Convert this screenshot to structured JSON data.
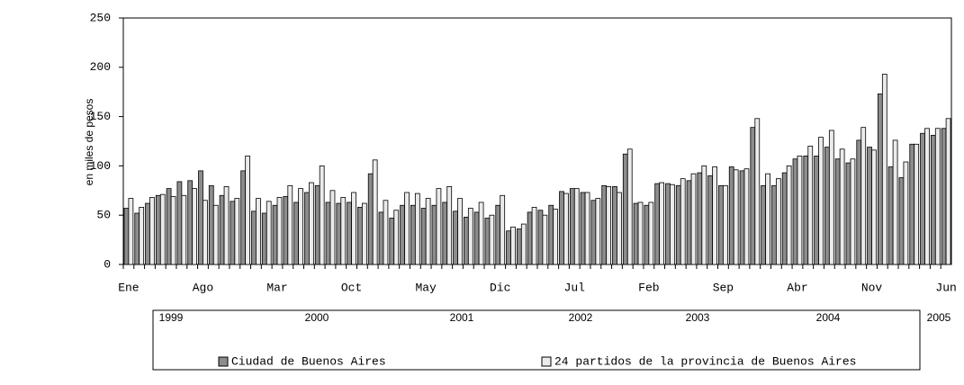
{
  "chart_data": {
    "type": "bar",
    "y_label": "en miles de pesos",
    "categories": [
      "Ene",
      null,
      null,
      null,
      null,
      null,
      null,
      "Ago",
      null,
      null,
      null,
      null,
      null,
      null,
      "Mar",
      null,
      null,
      null,
      null,
      null,
      null,
      "Oct",
      null,
      null,
      null,
      null,
      null,
      null,
      "May",
      null,
      null,
      null,
      null,
      null,
      null,
      "Dic",
      null,
      null,
      null,
      null,
      null,
      null,
      "Jul",
      null,
      null,
      null,
      null,
      null,
      null,
      "Feb",
      null,
      null,
      null,
      null,
      null,
      null,
      "Sep",
      null,
      null,
      null,
      null,
      null,
      null,
      "Abr",
      null,
      null,
      null,
      null,
      null,
      null,
      "Nov",
      null,
      null,
      null,
      null,
      null,
      null,
      "Jun"
    ],
    "years": [
      "1999",
      "2000",
      "2001",
      "2002",
      "2003",
      "2004",
      "2005"
    ],
    "series": [
      {
        "name": "Ciudad de Buenos Aires",
        "color": "#8c8c8c",
        "values": [
          57,
          52,
          62,
          70,
          77,
          84,
          85,
          95,
          80,
          70,
          64,
          95,
          54,
          52,
          60,
          69,
          63,
          73,
          80,
          63,
          62,
          63,
          58,
          92,
          53,
          47,
          60,
          60,
          57,
          60,
          63,
          54,
          48,
          53,
          47,
          60,
          34,
          36,
          53,
          55,
          60,
          74,
          77,
          73,
          65,
          80,
          79,
          112,
          62,
          60,
          82,
          82,
          80,
          85,
          93,
          90,
          80,
          99,
          95,
          139,
          80,
          80,
          93,
          107,
          110,
          110,
          119,
          107,
          103,
          126,
          119,
          173,
          99,
          88,
          122,
          133,
          131,
          138
        ]
      },
      {
        "name": "24 partidos de la provincia de Buenos Aires",
        "color": "#ebebeb",
        "values": [
          67,
          58,
          68,
          71,
          69,
          70,
          77,
          65,
          60,
          79,
          67,
          110,
          67,
          64,
          68,
          80,
          77,
          83,
          100,
          75,
          68,
          73,
          62,
          106,
          65,
          55,
          73,
          72,
          67,
          77,
          79,
          67,
          57,
          63,
          50,
          70,
          38,
          41,
          58,
          50,
          56,
          72,
          77,
          73,
          67,
          79,
          73,
          117,
          63,
          63,
          83,
          81,
          87,
          92,
          100,
          99,
          80,
          96,
          97,
          148,
          92,
          87,
          100,
          110,
          120,
          129,
          136,
          117,
          107,
          139,
          116,
          193,
          126,
          104,
          122,
          138,
          138,
          148
        ]
      }
    ],
    "ylim": [
      0,
      250
    ],
    "yticks": [
      0,
      50,
      100,
      150,
      200,
      250
    ],
    "grid": false
  }
}
